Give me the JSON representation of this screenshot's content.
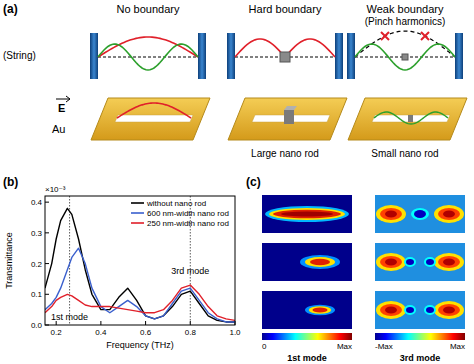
{
  "panel_a": {
    "label": "(a)",
    "row_label": "(String)",
    "field_label": "E",
    "material_label": "Au",
    "columns": [
      {
        "title": "No boundary"
      },
      {
        "title": "Hard boundary",
        "caption": "Large nano rod"
      },
      {
        "title": "Weak boundary",
        "subtitle": "(Pinch harmonics)",
        "caption": "Small nano rod"
      }
    ]
  },
  "chart_data": {
    "type": "line",
    "panel_label": "(b)",
    "x_label": "Frequency (THz)",
    "y_label": "Transmittance",
    "y_scale_label": "×10⁻³",
    "x": [
      0.15,
      0.18,
      0.2,
      0.22,
      0.25,
      0.27,
      0.3,
      0.33,
      0.36,
      0.4,
      0.44,
      0.48,
      0.52,
      0.56,
      0.6,
      0.64,
      0.68,
      0.72,
      0.76,
      0.8,
      0.84,
      0.88,
      0.92,
      0.96,
      1.0
    ],
    "series": [
      {
        "name": "without nano rod",
        "color": "#000000",
        "values": [
          0.12,
          0.2,
          0.28,
          0.34,
          0.38,
          0.36,
          0.28,
          0.18,
          0.1,
          0.05,
          0.05,
          0.09,
          0.12,
          0.08,
          0.03,
          0.02,
          0.03,
          0.06,
          0.1,
          0.11,
          0.07,
          0.03,
          0.015,
          0.01,
          0.01
        ]
      },
      {
        "name": "600 nm-width nano rod",
        "color": "#3a5fcd",
        "values": [
          0.05,
          0.07,
          0.09,
          0.12,
          0.18,
          0.22,
          0.25,
          0.2,
          0.12,
          0.06,
          0.04,
          0.06,
          0.08,
          0.06,
          0.03,
          0.02,
          0.03,
          0.07,
          0.11,
          0.12,
          0.08,
          0.04,
          0.02,
          0.01,
          0.01
        ]
      },
      {
        "name": "250 nm-width nano rod",
        "color": "#e0202a",
        "values": [
          0.04,
          0.06,
          0.08,
          0.09,
          0.1,
          0.095,
          0.08,
          0.065,
          0.06,
          0.06,
          0.06,
          0.055,
          0.05,
          0.045,
          0.04,
          0.04,
          0.05,
          0.08,
          0.12,
          0.13,
          0.1,
          0.06,
          0.03,
          0.02,
          0.015
        ]
      }
    ],
    "xlim": [
      0.15,
      1.0
    ],
    "xticks": [
      0.2,
      0.4,
      0.6,
      0.8,
      {
        "value": 1.0,
        "label": "1.0"
      }
    ],
    "ylim": [
      0,
      0.42
    ],
    "yticks": [
      {
        "value": 0,
        "label": "0.0"
      },
      0.1,
      0.2,
      0.3,
      0.4
    ],
    "legend": "upper right",
    "grid": false,
    "annotations": [
      {
        "text": "1st mode",
        "x": 0.26,
        "y": 0.015
      },
      {
        "text": "3rd mode",
        "x": 0.8,
        "y": 0.165
      }
    ]
  },
  "panel_c": {
    "label": "(c)",
    "columns": [
      {
        "label": "1st mode",
        "colorbar": {
          "min_label": "0",
          "max_label": "Max"
        }
      },
      {
        "label": "3rd mode",
        "colorbar": {
          "min_label": "-Max",
          "max_label": "Max"
        }
      }
    ]
  }
}
